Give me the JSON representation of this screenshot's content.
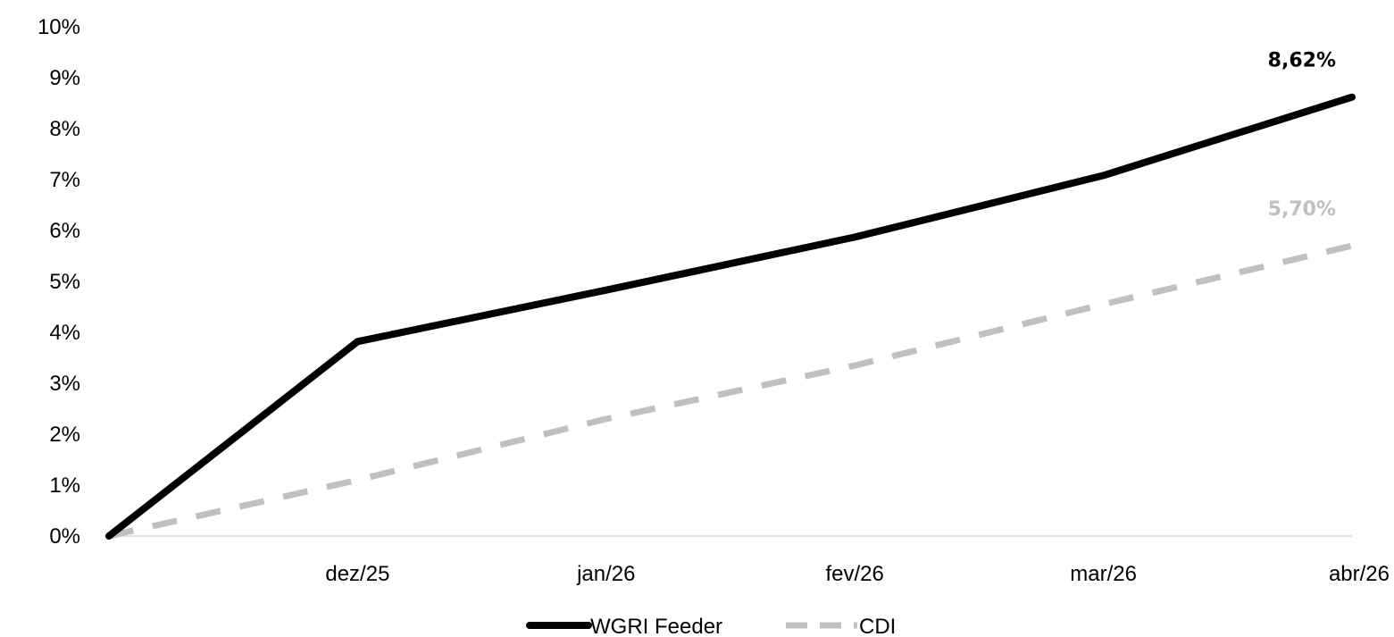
{
  "chart_data": {
    "type": "line",
    "categories": [
      "",
      "dez/25",
      "jan/26",
      "fev/26",
      "mar/26",
      "abr/26"
    ],
    "ylim": [
      0,
      10
    ],
    "y_ticks": [
      "0%",
      "1%",
      "2%",
      "3%",
      "4%",
      "5%",
      "6%",
      "7%",
      "8%",
      "9%",
      "10%"
    ],
    "grid": false,
    "legend_position": "bottom",
    "series": [
      {
        "name": "WGRI Feeder",
        "values": [
          0,
          3.82,
          4.83,
          5.87,
          7.08,
          8.62
        ],
        "color": "#000000",
        "style": "solid",
        "end_label": "8,62%"
      },
      {
        "name": "CDI",
        "values": [
          0,
          1.1,
          2.3,
          3.35,
          4.55,
          5.7
        ],
        "color": "#c0c0c0",
        "style": "dashed",
        "end_label": "5,70%"
      }
    ]
  }
}
